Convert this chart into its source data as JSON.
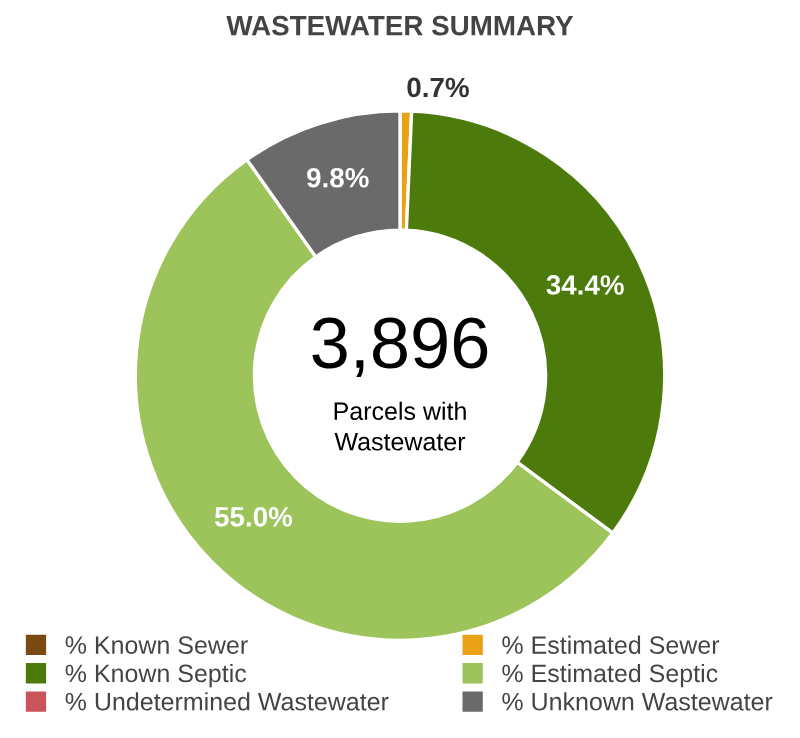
{
  "chart_data": {
    "type": "donut",
    "title": "WASTEWATER SUMMARY",
    "categories": [
      "% Known Sewer",
      "% Estimated Sewer",
      "% Known Septic",
      "% Estimated Septic",
      "% Undetermined Wastewater",
      "% Unknown Wastewater"
    ],
    "values": [
      0,
      0.7,
      34.4,
      55.0,
      0,
      9.8
    ],
    "colors": [
      "#7b4a12",
      "#e9a115",
      "#4c7a0b",
      "#9dc35b",
      "#c9545a",
      "#6a6a6a"
    ],
    "value_labels": [
      null,
      "0.7%",
      "34.4%",
      "55.0%",
      null,
      "9.8%"
    ],
    "annotations": [
      "3,896",
      "Parcels with\nWastewater"
    ],
    "legend": "bottom"
  }
}
